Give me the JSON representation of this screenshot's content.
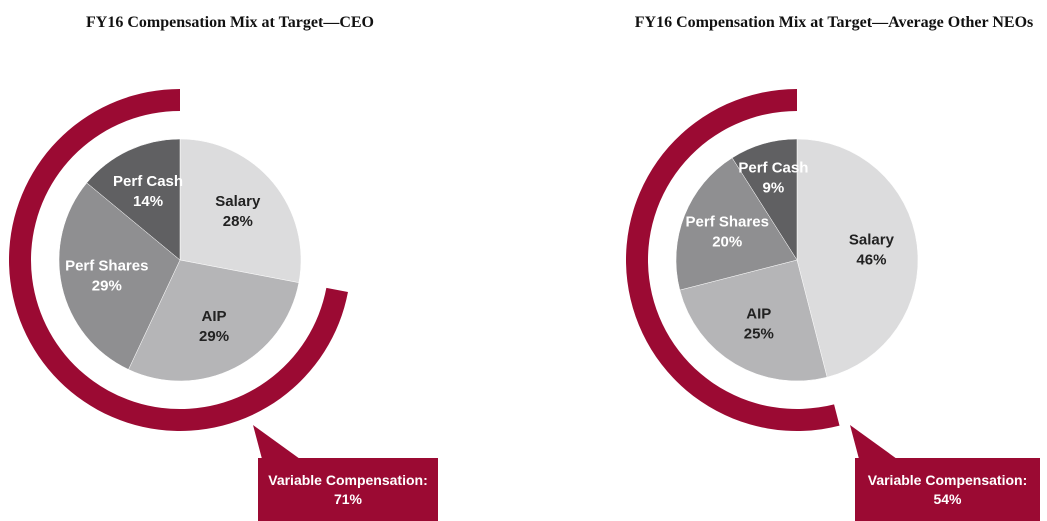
{
  "chart_data": [
    {
      "type": "pie",
      "title": "FY16 Compensation Mix at Target—CEO",
      "categories": [
        "Salary",
        "AIP",
        "Perf Shares",
        "Perf Cash"
      ],
      "values": [
        28,
        29,
        29,
        14
      ],
      "value_labels": [
        "28%",
        "29%",
        "29%",
        "14%"
      ],
      "colors": [
        "#dcdcdd",
        "#b5b5b7",
        "#8f8f91",
        "#606062"
      ],
      "annotation": "Variable Compensation: 71%",
      "annotation_color": "#9b0a33"
    },
    {
      "type": "pie",
      "title": "FY16 Compensation Mix at Target—Average Other NEOs",
      "categories": [
        "Salary",
        "AIP",
        "Perf Shares",
        "Perf Cash"
      ],
      "values": [
        46,
        25,
        20,
        9
      ],
      "value_labels": [
        "46%",
        "25%",
        "20%",
        "9%"
      ],
      "colors": [
        "#dcdcdd",
        "#b5b5b7",
        "#8f8f91",
        "#606062"
      ],
      "annotation": "Variable Compensation: 54%",
      "annotation_color": "#9b0a33"
    }
  ]
}
